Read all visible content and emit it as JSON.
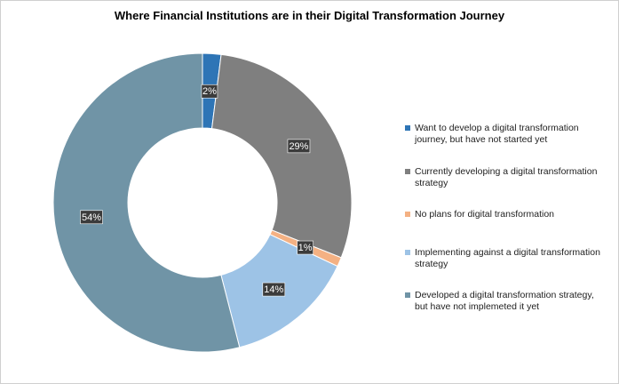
{
  "chart_data": {
    "type": "pie",
    "subtype": "donut",
    "title": "Where Financial Institutions are in their Digital Transformation Journey",
    "categories": [
      "Want to develop a digital transformation journey, but have not started yet",
      "Currently developing a digital transformation strategy",
      "No plans for digital transformation",
      "Implementing against a digital transformation strategy",
      "Developed a digital transformation strategy, but have not implemeted it yet"
    ],
    "values": [
      2,
      29,
      1,
      14,
      54
    ],
    "labels": [
      "2%",
      "29%",
      "1%",
      "14%",
      "54%"
    ],
    "colors": [
      "#2e75b6",
      "#7f7f7f",
      "#f4b183",
      "#9dc3e6",
      "#7094a6"
    ],
    "legend_position": "right"
  }
}
